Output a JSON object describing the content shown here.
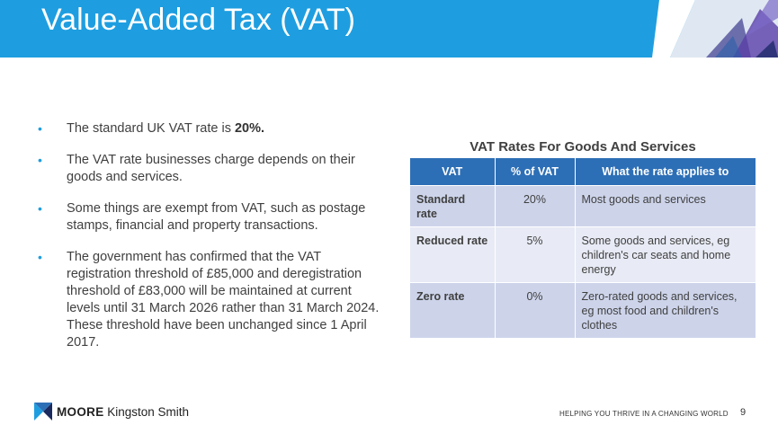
{
  "header": {
    "title": "Value-Added Tax (VAT)"
  },
  "bullets": [
    {
      "text": "The standard UK VAT rate is ",
      "bold": "20%."
    },
    {
      "text": "The VAT rate businesses charge depends on their goods and services."
    },
    {
      "text": "Some things are exempt from VAT, such as postage stamps, financial and property transactions."
    },
    {
      "text": "The government has confirmed that the VAT registration threshold of £85,000 and deregistration threshold of £83,000 will be maintained at current levels until 31 March 2026 rather than 31 March 2024. These threshold have been unchanged since 1 April 2017."
    }
  ],
  "table": {
    "title": "VAT Rates For Goods And Services",
    "headers": [
      "VAT",
      "% of VAT",
      "What the rate applies to"
    ],
    "rows": [
      {
        "name": "Standard rate",
        "pct": "20%",
        "applies": "Most goods and services"
      },
      {
        "name": "Reduced rate",
        "pct": "5%",
        "applies": "Some goods and services, eg children's car seats and home energy"
      },
      {
        "name": "Zero rate",
        "pct": "0%",
        "applies": "Zero-rated goods and services, eg most food and children's clothes"
      }
    ]
  },
  "footer": {
    "brand_bold": "MOORE",
    "brand_rest": " Kingston Smith",
    "tagline": "HELPING YOU THRIVE IN A CHANGING WORLD",
    "page": "9"
  },
  "colors": {
    "accent": "#1e9ee0",
    "table_header": "#2d6fb6",
    "row_dark": "#cdd4ea",
    "row_light": "#e8ebf5"
  }
}
